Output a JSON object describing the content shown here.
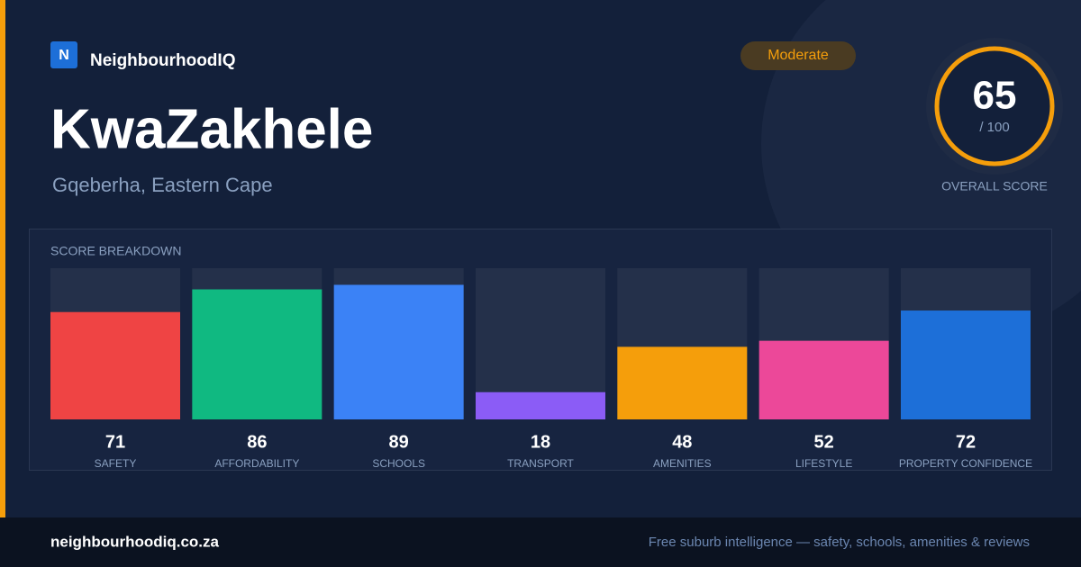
{
  "header": {
    "logo_letter": "N",
    "brand": "NeighbourhoodIQ",
    "badge": "Moderate"
  },
  "suburb": {
    "name": "KwaZakhele",
    "location": "Gqeberha, Eastern Cape"
  },
  "overall": {
    "score": 65,
    "out_of": "/ 100",
    "label": "OVERALL SCORE"
  },
  "chart_data": {
    "type": "bar",
    "title": "SCORE BREAKDOWN",
    "categories": [
      "SAFETY",
      "AFFORDABILITY",
      "SCHOOLS",
      "TRANSPORT",
      "AMENITIES",
      "LIFESTYLE",
      "PROPERTY CONFIDENCE"
    ],
    "values": [
      71,
      86,
      89,
      18,
      48,
      52,
      72
    ],
    "colors": [
      "#ef4444",
      "#10b981",
      "#3b82f6",
      "#8b5cf6",
      "#f59e0b",
      "#ec4899",
      "#1d6fd8"
    ],
    "ylim": [
      0,
      100
    ]
  },
  "footer": {
    "site": "neighbourhoodiq.co.za",
    "tagline": "Free suburb intelligence — safety, schools, amenities & reviews"
  }
}
